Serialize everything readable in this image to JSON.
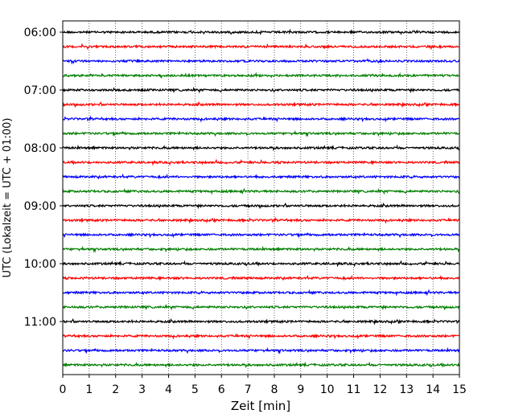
{
  "chart_data": {
    "type": "line",
    "title": "",
    "xlabel": "Zeit  [min]",
    "ylabel": "UTC (Lokalzeit = UTC + 01:00)",
    "xlim": [
      0,
      15
    ],
    "x_ticks": [
      "0",
      "1",
      "2",
      "3",
      "4",
      "5",
      "6",
      "7",
      "8",
      "9",
      "10",
      "11",
      "12",
      "13",
      "14",
      "15"
    ],
    "y_tick_labels": [
      "06:00",
      "07:00",
      "08:00",
      "09:00",
      "10:00",
      "11:00"
    ],
    "grid": "vertical dotted",
    "trace_colors": [
      "#000000",
      "#ff0000",
      "#0000ff",
      "#007f00"
    ],
    "trace_start_times": [
      "06:00",
      "06:15",
      "06:30",
      "06:45",
      "07:00",
      "07:15",
      "07:30",
      "07:45",
      "08:00",
      "08:15",
      "08:30",
      "08:45",
      "09:00",
      "09:15",
      "09:30",
      "09:45",
      "10:00",
      "10:15",
      "10:30",
      "10:45",
      "11:00",
      "11:15",
      "11:30",
      "11:45"
    ]
  }
}
